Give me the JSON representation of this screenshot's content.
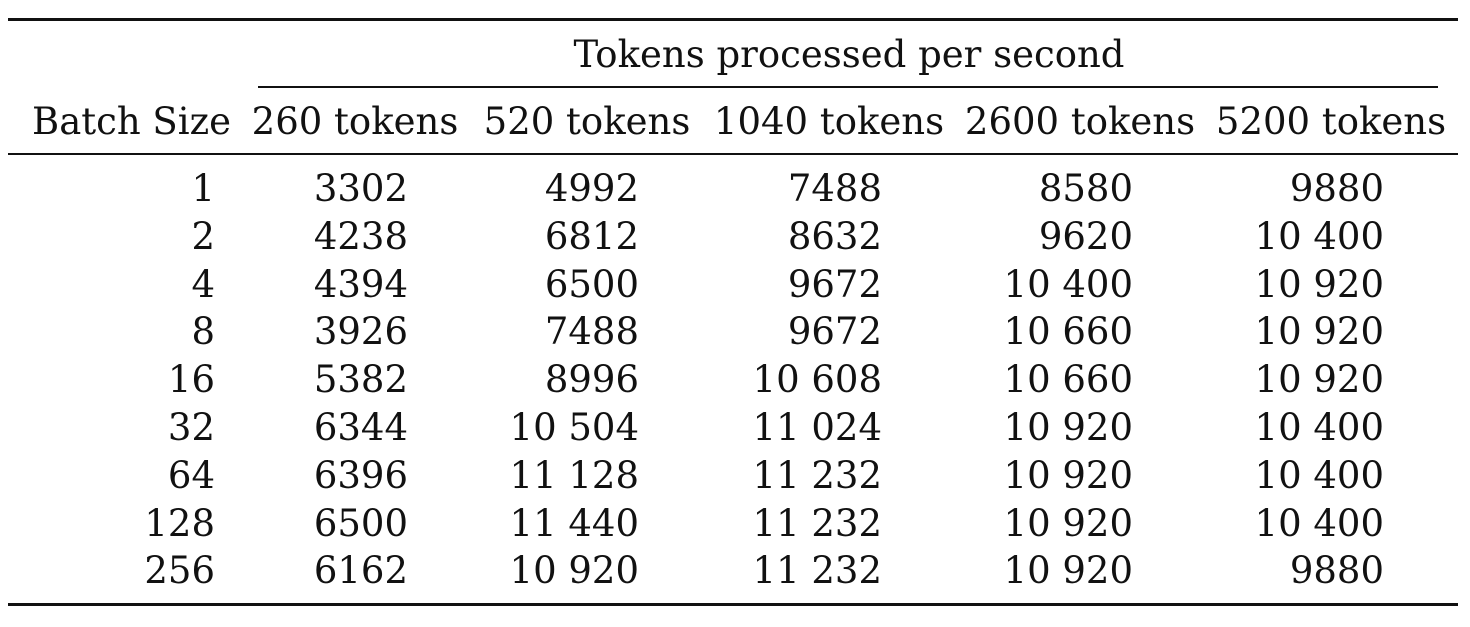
{
  "table": {
    "group_header": "Tokens processed per second",
    "row_header": "Batch Size",
    "columns": [
      "260 tokens",
      "520 tokens",
      "1040 tokens",
      "2600 tokens",
      "5200 tokens"
    ],
    "rows": [
      {
        "batch": "1",
        "values": [
          "3302",
          "4992",
          "7488",
          "8580",
          "9880"
        ]
      },
      {
        "batch": "2",
        "values": [
          "4238",
          "6812",
          "8632",
          "9620",
          "10 400"
        ]
      },
      {
        "batch": "4",
        "values": [
          "4394",
          "6500",
          "9672",
          "10 400",
          "10 920"
        ]
      },
      {
        "batch": "8",
        "values": [
          "3926",
          "7488",
          "9672",
          "10 660",
          "10 920"
        ]
      },
      {
        "batch": "16",
        "values": [
          "5382",
          "8996",
          "10 608",
          "10 660",
          "10 920"
        ]
      },
      {
        "batch": "32",
        "values": [
          "6344",
          "10 504",
          "11 024",
          "10 920",
          "10 400"
        ]
      },
      {
        "batch": "64",
        "values": [
          "6396",
          "11 128",
          "11 232",
          "10 920",
          "10 400"
        ]
      },
      {
        "batch": "128",
        "values": [
          "6500",
          "11 440",
          "11 232",
          "10 920",
          "10 400"
        ]
      },
      {
        "batch": "256",
        "values": [
          "6162",
          "10 920",
          "11 232",
          "10 920",
          "9880"
        ]
      }
    ]
  }
}
